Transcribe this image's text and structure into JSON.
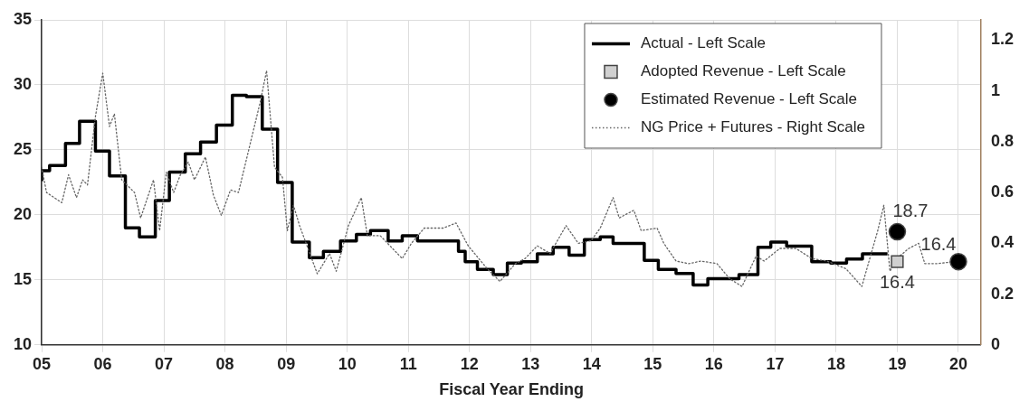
{
  "chart_data": {
    "type": "line",
    "xlabel": "Fiscal Year Ending",
    "xlim": [
      5,
      20.37
    ],
    "xticks": [
      {
        "value": 5,
        "label": "05"
      },
      {
        "value": 6,
        "label": "06"
      },
      {
        "value": 7,
        "label": "07"
      },
      {
        "value": 8,
        "label": "08"
      },
      {
        "value": 9,
        "label": "09"
      },
      {
        "value": 10,
        "label": "10"
      },
      {
        "value": 11,
        "label": "11"
      },
      {
        "value": 12,
        "label": "12"
      },
      {
        "value": 13,
        "label": "13"
      },
      {
        "value": 14,
        "label": "14"
      },
      {
        "value": 15,
        "label": "15"
      },
      {
        "value": 16,
        "label": "16"
      },
      {
        "value": 17,
        "label": "17"
      },
      {
        "value": 18,
        "label": "18"
      },
      {
        "value": 19,
        "label": "19"
      },
      {
        "value": 20,
        "label": "20"
      }
    ],
    "ylim": [
      10,
      35
    ],
    "yticks": [
      10,
      15,
      20,
      25,
      30,
      35
    ],
    "y2lim": [
      0,
      1.28
    ],
    "y2ticks": [
      0,
      0.2,
      0.4,
      0.6,
      0.8,
      1,
      1.2
    ],
    "grid": true,
    "legend": "top right",
    "series": [
      {
        "name": "Actual - Left Scale",
        "type": "step",
        "color": "#000000",
        "line_style": "solid",
        "x": [
          5.0,
          5.13,
          5.39,
          5.62,
          5.88,
          6.11,
          6.37,
          6.6,
          6.86,
          7.09,
          7.35,
          7.6,
          7.86,
          8.12,
          8.35,
          8.61,
          8.86,
          9.1,
          9.38,
          9.61,
          9.89,
          10.15,
          10.38,
          10.67,
          10.9,
          11.15,
          11.82,
          11.93,
          12.13,
          12.39,
          12.62,
          12.85,
          13.11,
          13.37,
          13.63,
          13.88,
          14.14,
          14.35,
          14.86,
          15.09,
          15.38,
          15.66,
          15.9,
          16.41,
          16.72,
          16.93,
          17.19,
          17.6,
          17.91,
          18.17,
          18.43,
          18.69,
          18.84
        ],
        "values": [
          22.6,
          23.4,
          23.8,
          25.5,
          27.2,
          24.9,
          23.0,
          19.0,
          18.3,
          21.1,
          23.3,
          24.7,
          25.6,
          26.9,
          29.2,
          29.1,
          26.6,
          22.5,
          17.9,
          16.7,
          17.2,
          18.0,
          18.5,
          18.8,
          18.0,
          18.4,
          18.0,
          17.2,
          16.4,
          15.8,
          15.4,
          16.3,
          16.4,
          17.0,
          17.5,
          16.9,
          18.1,
          18.3,
          17.8,
          16.5,
          15.8,
          15.5,
          14.6,
          15.1,
          15.4,
          17.5,
          17.9,
          17.6,
          16.4,
          16.3,
          16.6,
          17.0,
          17.0
        ]
      },
      {
        "name": "Adopted Revenue - Left Scale",
        "type": "scatter",
        "marker": "square",
        "color": "#d0d0d0",
        "x": [
          19
        ],
        "values": [
          16.4
        ],
        "value_labels": [
          "16.4"
        ]
      },
      {
        "name": "Estimated Revenue - Left Scale",
        "type": "scatter",
        "marker": "circle",
        "color": "#000000",
        "x": [
          19,
          20
        ],
        "values": [
          18.7,
          16.4
        ],
        "value_labels": [
          "18.7",
          "16.4"
        ]
      },
      {
        "name": "NG Price + Futures - Right Scale",
        "type": "line",
        "axis": "y2",
        "color": "#666666",
        "line_style": "dotted",
        "x": [
          5.0,
          5.08,
          5.33,
          5.44,
          5.57,
          5.67,
          5.75,
          5.88,
          6.0,
          6.11,
          6.19,
          6.31,
          6.52,
          6.62,
          6.83,
          6.93,
          7.04,
          7.16,
          7.27,
          7.4,
          7.5,
          7.68,
          7.81,
          7.94,
          8.09,
          8.22,
          8.37,
          8.58,
          8.68,
          8.81,
          8.94,
          9.02,
          9.12,
          9.22,
          9.51,
          9.71,
          9.82,
          10.02,
          10.23,
          10.33,
          10.54,
          10.9,
          11.05,
          11.26,
          11.57,
          11.78,
          11.98,
          12.29,
          12.5,
          12.75,
          12.91,
          13.11,
          13.32,
          13.58,
          13.78,
          13.99,
          14.14,
          14.35,
          14.45,
          14.69,
          14.81,
          15.07,
          15.18,
          15.38,
          15.59,
          15.79,
          16.05,
          16.26,
          16.46,
          16.69,
          16.82,
          17.08,
          17.34,
          17.6,
          17.85,
          18.16,
          18.42,
          18.68,
          18.78,
          18.88,
          18.99,
          19.19,
          19.35,
          19.45,
          19.66,
          20.01
        ],
        "values": [
          0.7,
          0.6,
          0.56,
          0.67,
          0.58,
          0.65,
          0.63,
          0.9,
          1.07,
          0.86,
          0.91,
          0.65,
          0.6,
          0.5,
          0.65,
          0.45,
          0.68,
          0.6,
          0.67,
          0.72,
          0.65,
          0.74,
          0.59,
          0.51,
          0.61,
          0.6,
          0.75,
          0.96,
          1.08,
          0.7,
          0.66,
          0.45,
          0.55,
          0.47,
          0.28,
          0.36,
          0.29,
          0.47,
          0.58,
          0.43,
          0.43,
          0.34,
          0.4,
          0.46,
          0.46,
          0.48,
          0.39,
          0.3,
          0.25,
          0.32,
          0.34,
          0.39,
          0.36,
          0.47,
          0.4,
          0.41,
          0.46,
          0.58,
          0.5,
          0.53,
          0.45,
          0.46,
          0.4,
          0.33,
          0.32,
          0.33,
          0.32,
          0.26,
          0.23,
          0.35,
          0.33,
          0.38,
          0.38,
          0.34,
          0.33,
          0.3,
          0.23,
          0.45,
          0.55,
          0.29,
          0.34,
          0.38,
          0.4,
          0.32,
          0.32,
          0.33
        ]
      }
    ]
  }
}
